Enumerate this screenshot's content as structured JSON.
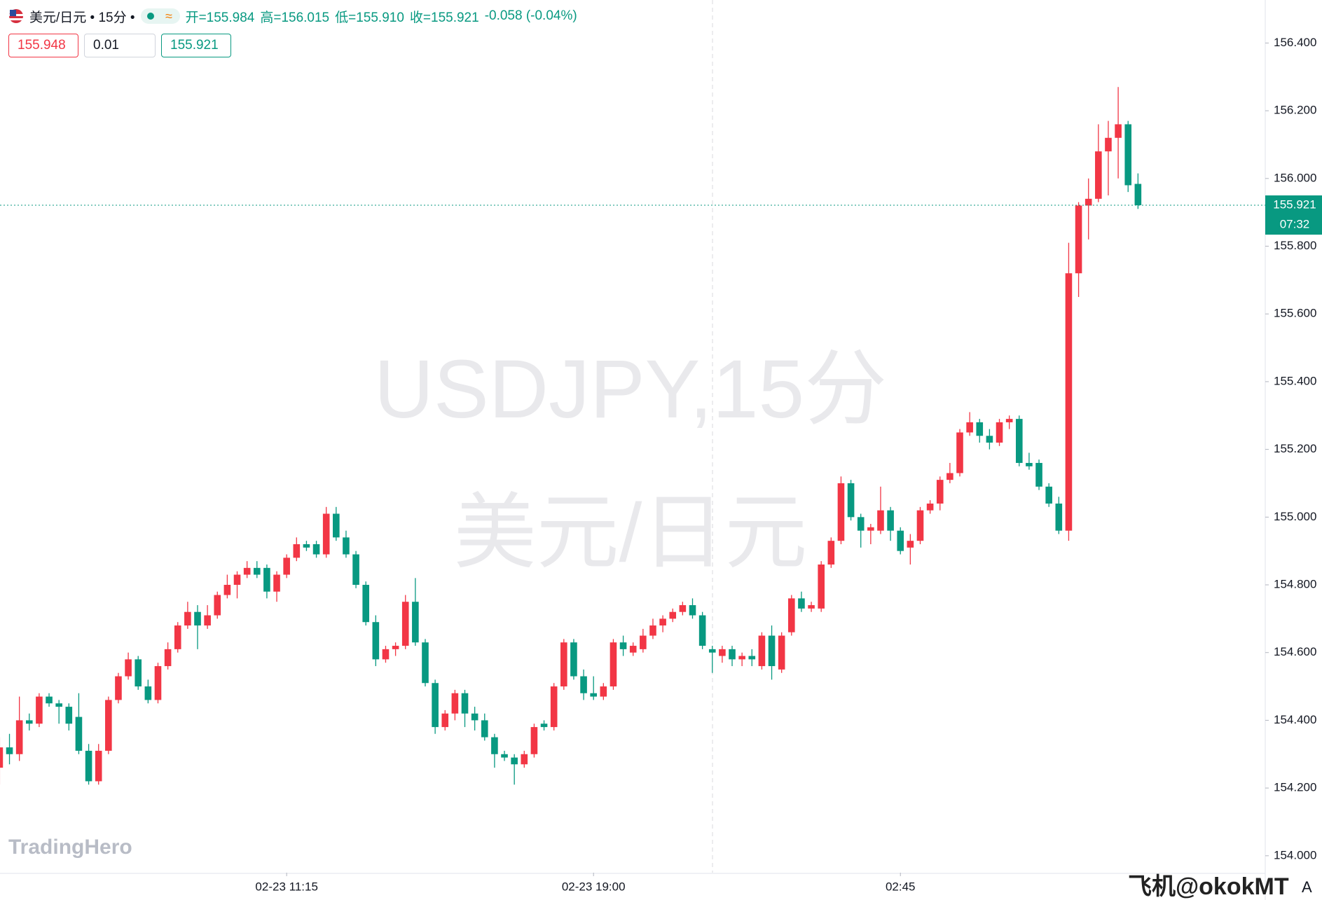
{
  "header": {
    "symbol": "美元/日元 • 15分 •",
    "legend": [
      "开=155.984",
      "高=156.015",
      "低=155.910",
      "收=155.921"
    ],
    "change": "-0.058 (-0.04%)"
  },
  "trade": {
    "sell": "155.948",
    "quantity": "0.01",
    "buy": "155.921"
  },
  "watermark": [
    "USDJPY,15分",
    "美元/日元"
  ],
  "brand": "TradingHero",
  "footer_text": "飞机@okokMT",
  "axis_mode": "A",
  "countdown": "07:32",
  "chart_data": {
    "type": "candlestick",
    "up_color": "#f23645",
    "down_color": "#089981",
    "grid": false,
    "categories": [
      null,
      null,
      null,
      null,
      null,
      null,
      null,
      null,
      null,
      null,
      null,
      null,
      null,
      null,
      null,
      null,
      null,
      null,
      null,
      null,
      null,
      null,
      null,
      null,
      null,
      null,
      null,
      null,
      null,
      "02-23 11:15",
      null,
      null,
      null,
      null,
      null,
      null,
      null,
      null,
      null,
      null,
      null,
      null,
      null,
      null,
      null,
      null,
      null,
      null,
      null,
      null,
      null,
      null,
      null,
      null,
      null,
      null,
      null,
      null,
      null,
      null,
      "02-23 19:00",
      null,
      null,
      null,
      null,
      null,
      null,
      null,
      null,
      null,
      null,
      null,
      null,
      null,
      null,
      null,
      null,
      null,
      null,
      null,
      null,
      null,
      null,
      null,
      null,
      null,
      null,
      null,
      null,
      null,
      null,
      "02:45",
      null,
      null,
      null,
      null,
      null,
      null,
      null,
      null,
      null,
      null,
      null,
      null,
      null,
      null,
      null,
      null,
      null,
      null,
      null,
      null,
      null,
      null,
      null,
      null
    ],
    "open": [
      154.26,
      154.32,
      154.3,
      154.4,
      154.39,
      154.47,
      154.45,
      154.44,
      154.41,
      154.31,
      154.22,
      154.31,
      154.46,
      154.53,
      154.58,
      154.5,
      154.46,
      154.56,
      154.61,
      154.68,
      154.72,
      154.68,
      154.71,
      154.77,
      154.8,
      154.83,
      154.85,
      154.85,
      154.78,
      154.83,
      154.88,
      154.92,
      154.92,
      154.89,
      155.01,
      154.94,
      154.89,
      154.8,
      154.69,
      154.58,
      154.61,
      154.62,
      154.75,
      154.63,
      154.51,
      154.38,
      154.42,
      154.48,
      154.42,
      154.4,
      154.35,
      154.3,
      154.29,
      154.27,
      154.3,
      154.39,
      154.38,
      154.5,
      154.63,
      154.53,
      154.48,
      154.47,
      154.5,
      154.63,
      154.6,
      154.61,
      154.65,
      154.68,
      154.7,
      154.72,
      154.74,
      154.71,
      154.61,
      154.59,
      154.61,
      154.58,
      154.59,
      154.56,
      154.65,
      154.55,
      154.66,
      154.76,
      154.73,
      154.73,
      154.86,
      154.93,
      155.1,
      155.0,
      154.96,
      154.96,
      155.02,
      154.96,
      154.91,
      154.93,
      155.02,
      155.04,
      155.11,
      155.13,
      155.25,
      155.28,
      155.24,
      155.22,
      155.28,
      155.29,
      155.16,
      155.16,
      155.09,
      155.04,
      154.96,
      155.72,
      155.92,
      155.94,
      156.08,
      156.12,
      156.16,
      155.984
    ],
    "high": [
      154.35,
      154.36,
      154.47,
      154.42,
      154.48,
      154.48,
      154.46,
      154.45,
      154.48,
      154.33,
      154.33,
      154.47,
      154.54,
      154.6,
      154.59,
      154.52,
      154.57,
      154.63,
      154.69,
      154.75,
      154.74,
      154.74,
      154.78,
      154.83,
      154.84,
      154.87,
      154.87,
      154.86,
      154.84,
      154.89,
      154.94,
      154.93,
      154.93,
      155.03,
      155.03,
      154.96,
      154.9,
      154.81,
      154.71,
      154.62,
      154.63,
      154.77,
      154.82,
      154.64,
      154.52,
      154.43,
      154.49,
      154.49,
      154.44,
      154.42,
      154.36,
      154.31,
      154.3,
      154.31,
      154.39,
      154.4,
      154.51,
      154.64,
      154.64,
      154.55,
      154.53,
      154.51,
      154.64,
      154.65,
      154.63,
      154.67,
      154.7,
      154.71,
      154.73,
      154.75,
      154.76,
      154.72,
      154.62,
      154.62,
      154.62,
      154.6,
      154.61,
      154.66,
      154.68,
      154.66,
      154.77,
      154.78,
      154.75,
      154.87,
      154.94,
      155.12,
      155.11,
      155.01,
      154.98,
      155.09,
      155.03,
      154.97,
      154.95,
      155.03,
      155.05,
      155.12,
      155.16,
      155.26,
      155.31,
      155.29,
      155.26,
      155.29,
      155.3,
      155.3,
      155.19,
      155.17,
      155.1,
      155.06,
      155.81,
      155.93,
      156.0,
      156.16,
      156.17,
      156.27,
      156.17,
      156.015
    ],
    "low": [
      154.21,
      154.27,
      154.28,
      154.37,
      154.38,
      154.44,
      154.39,
      154.37,
      154.3,
      154.21,
      154.21,
      154.3,
      154.45,
      154.52,
      154.49,
      154.45,
      154.45,
      154.55,
      154.6,
      154.67,
      154.61,
      154.67,
      154.7,
      154.76,
      154.76,
      154.82,
      154.82,
      154.76,
      154.75,
      154.82,
      154.87,
      154.9,
      154.88,
      154.88,
      154.93,
      154.88,
      154.79,
      154.68,
      154.56,
      154.57,
      154.59,
      154.61,
      154.62,
      154.5,
      154.36,
      154.37,
      154.4,
      154.38,
      154.37,
      154.34,
      154.26,
      154.28,
      154.21,
      154.26,
      154.29,
      154.37,
      154.37,
      154.49,
      154.52,
      154.46,
      154.46,
      154.46,
      154.49,
      154.59,
      154.59,
      154.6,
      154.64,
      154.66,
      154.69,
      154.71,
      154.7,
      154.61,
      154.54,
      154.57,
      154.56,
      154.56,
      154.56,
      154.55,
      154.52,
      154.54,
      154.65,
      154.72,
      154.72,
      154.72,
      154.85,
      154.92,
      154.99,
      154.91,
      154.92,
      154.95,
      154.93,
      154.89,
      154.86,
      154.92,
      155.01,
      155.02,
      155.1,
      155.12,
      155.24,
      155.22,
      155.2,
      155.21,
      155.26,
      155.15,
      155.14,
      155.08,
      155.03,
      154.95,
      154.93,
      155.65,
      155.82,
      155.93,
      155.95,
      156.0,
      155.96,
      155.91
    ],
    "close": [
      154.32,
      154.3,
      154.4,
      154.39,
      154.47,
      154.45,
      154.44,
      154.39,
      154.31,
      154.22,
      154.31,
      154.46,
      154.53,
      154.58,
      154.5,
      154.46,
      154.56,
      154.61,
      154.68,
      154.72,
      154.68,
      154.71,
      154.77,
      154.8,
      154.83,
      154.85,
      154.83,
      154.78,
      154.83,
      154.88,
      154.92,
      154.91,
      154.89,
      155.01,
      154.94,
      154.89,
      154.8,
      154.69,
      154.58,
      154.61,
      154.62,
      154.75,
      154.63,
      154.51,
      154.38,
      154.42,
      154.48,
      154.42,
      154.4,
      154.35,
      154.3,
      154.29,
      154.27,
      154.3,
      154.38,
      154.38,
      154.5,
      154.63,
      154.53,
      154.48,
      154.47,
      154.5,
      154.63,
      154.61,
      154.62,
      154.65,
      154.68,
      154.7,
      154.72,
      154.74,
      154.71,
      154.62,
      154.6,
      154.61,
      154.58,
      154.59,
      154.58,
      154.65,
      154.56,
      154.65,
      154.76,
      154.73,
      154.74,
      154.86,
      154.93,
      155.1,
      155.0,
      154.96,
      154.97,
      155.02,
      154.96,
      154.9,
      154.93,
      155.02,
      155.04,
      155.11,
      155.13,
      155.25,
      155.28,
      155.24,
      155.22,
      155.28,
      155.29,
      155.16,
      155.15,
      155.09,
      155.04,
      154.96,
      155.72,
      155.92,
      155.94,
      156.08,
      156.12,
      156.16,
      155.98,
      155.921
    ],
    "ylim": [
      153.95,
      156.527
    ],
    "yticks": [
      {
        "value": 154.0,
        "label": "154.000"
      },
      {
        "value": 154.2,
        "label": "154.200"
      },
      {
        "value": 154.4,
        "label": "154.400"
      },
      {
        "value": 154.6,
        "label": "154.600"
      },
      {
        "value": 154.8,
        "label": "154.800"
      },
      {
        "value": 155.0,
        "label": "155.000"
      },
      {
        "value": 155.2,
        "label": "155.200"
      },
      {
        "value": 155.4,
        "label": "155.400"
      },
      {
        "value": 155.6,
        "label": "155.600"
      },
      {
        "value": 155.8,
        "label": "155.800"
      },
      {
        "value": 156.0,
        "label": "156.000"
      },
      {
        "value": 156.2,
        "label": "156.200"
      },
      {
        "value": 156.4,
        "label": "156.400"
      }
    ]
  }
}
